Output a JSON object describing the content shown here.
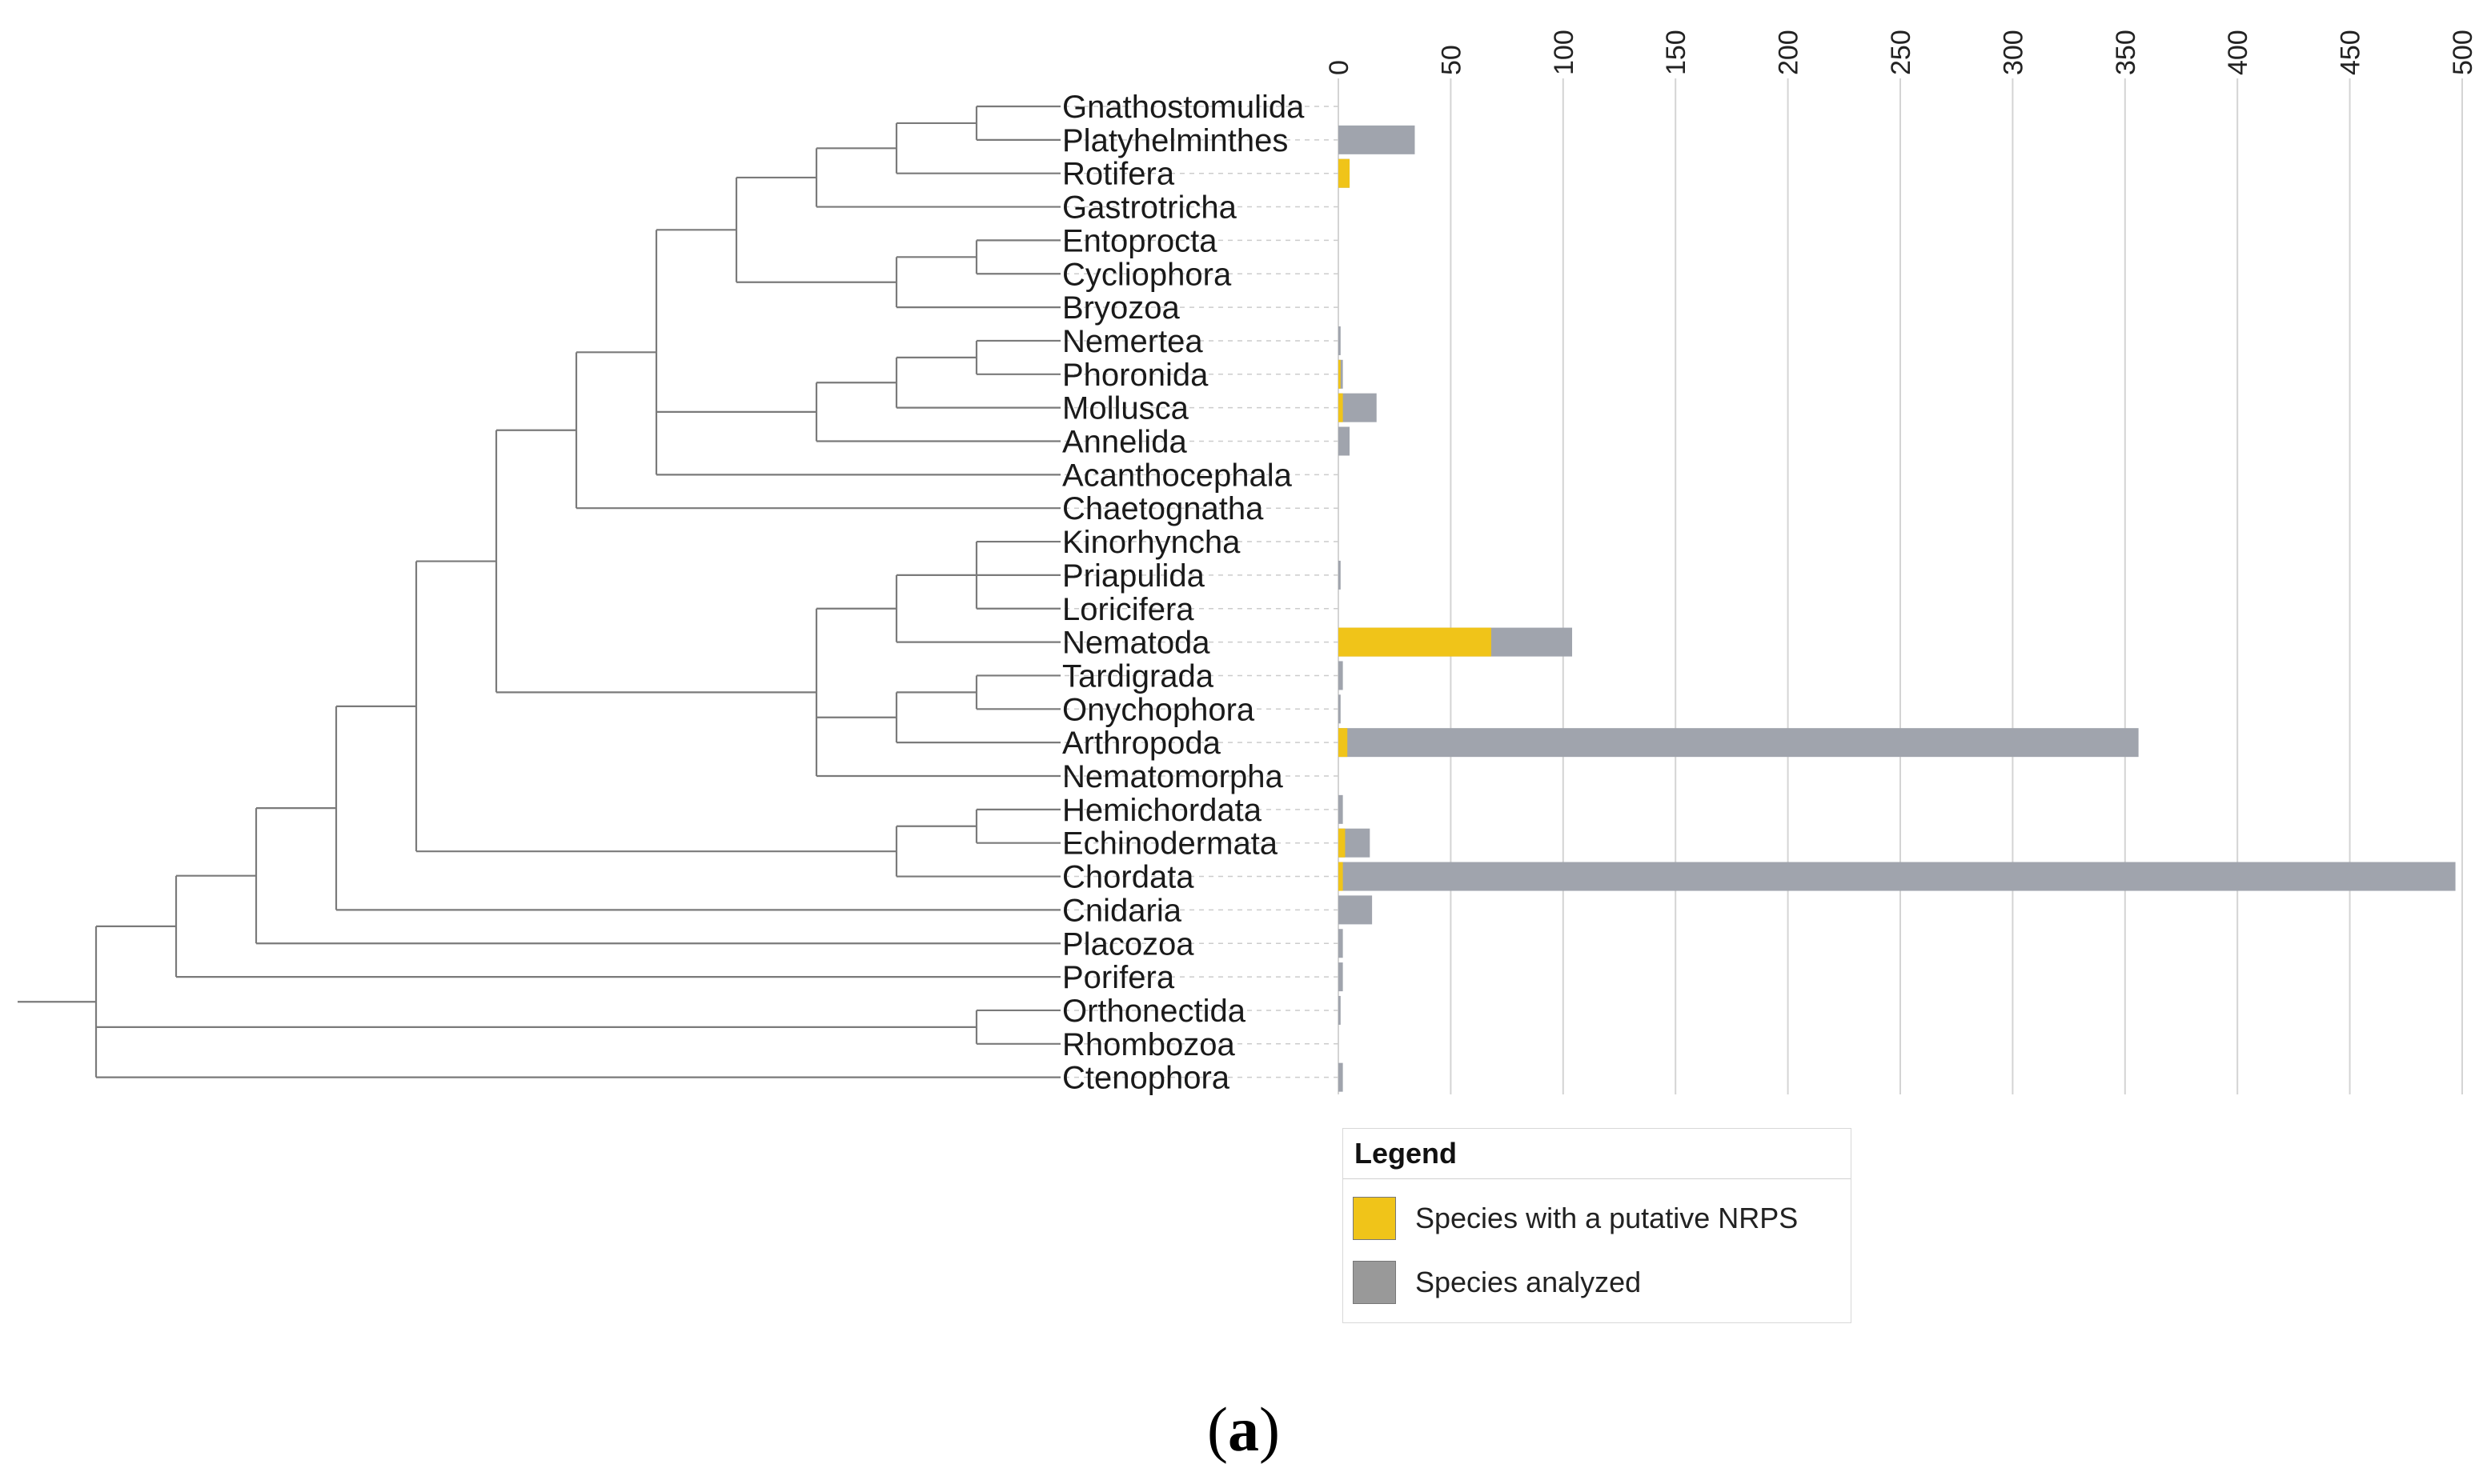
{
  "chart_data": {
    "type": "bar",
    "orientation": "horizontal-stacked",
    "categories": [
      "Gnathostomulida",
      "Platyhelminthes",
      "Rotifera",
      "Gastrotricha",
      "Entoprocta",
      "Cycliophora",
      "Bryozoa",
      "Nemertea",
      "Phoronida",
      "Mollusca",
      "Annelida",
      "Acanthocephala",
      "Chaetognatha",
      "Kinorhyncha",
      "Priapulida",
      "Loricifera",
      "Nematoda",
      "Tardigrada",
      "Onychophora",
      "Arthropoda",
      "Nematomorpha",
      "Hemichordata",
      "Echinodermata",
      "Chordata",
      "Cnidaria",
      "Placozoa",
      "Porifera",
      "Orthonectida",
      "Rhombozoa",
      "Ctenophora"
    ],
    "series": [
      {
        "name": "Species with a putative NRPS",
        "color": "#f0c419",
        "values": [
          0,
          0,
          5,
          0,
          0,
          0,
          0,
          0,
          1,
          2,
          0,
          0,
          0,
          0,
          0,
          0,
          68,
          0,
          0,
          4,
          0,
          0,
          3,
          2,
          0,
          0,
          0,
          0,
          0,
          0
        ]
      },
      {
        "name": "Species analyzed",
        "color": "#a0a4ad",
        "values": [
          0,
          34,
          5,
          0,
          0,
          0,
          0,
          1,
          2,
          17,
          5,
          0,
          0,
          0,
          1,
          0,
          104,
          2,
          1,
          356,
          0,
          2,
          14,
          497,
          15,
          2,
          2,
          1,
          0,
          2
        ]
      }
    ],
    "xlim": [
      0,
      500
    ],
    "xticks": [
      0,
      50,
      100,
      150,
      200,
      250,
      300,
      350,
      400,
      450,
      500
    ],
    "xlabel": "",
    "ylabel": "",
    "grid": true,
    "tree_leaves_in_order": true
  },
  "legend": {
    "title": "Legend",
    "items": [
      {
        "label": "Species with a putative NRPS",
        "color": "#f0c419"
      },
      {
        "label": "Species analyzed",
        "color": "#999999"
      }
    ]
  },
  "caption": {
    "open": "(",
    "letter": "a",
    "close": ")"
  },
  "colors": {
    "tree": "#7a7a7a",
    "grid": "#d4d4d4",
    "leader": "#cccccc"
  }
}
